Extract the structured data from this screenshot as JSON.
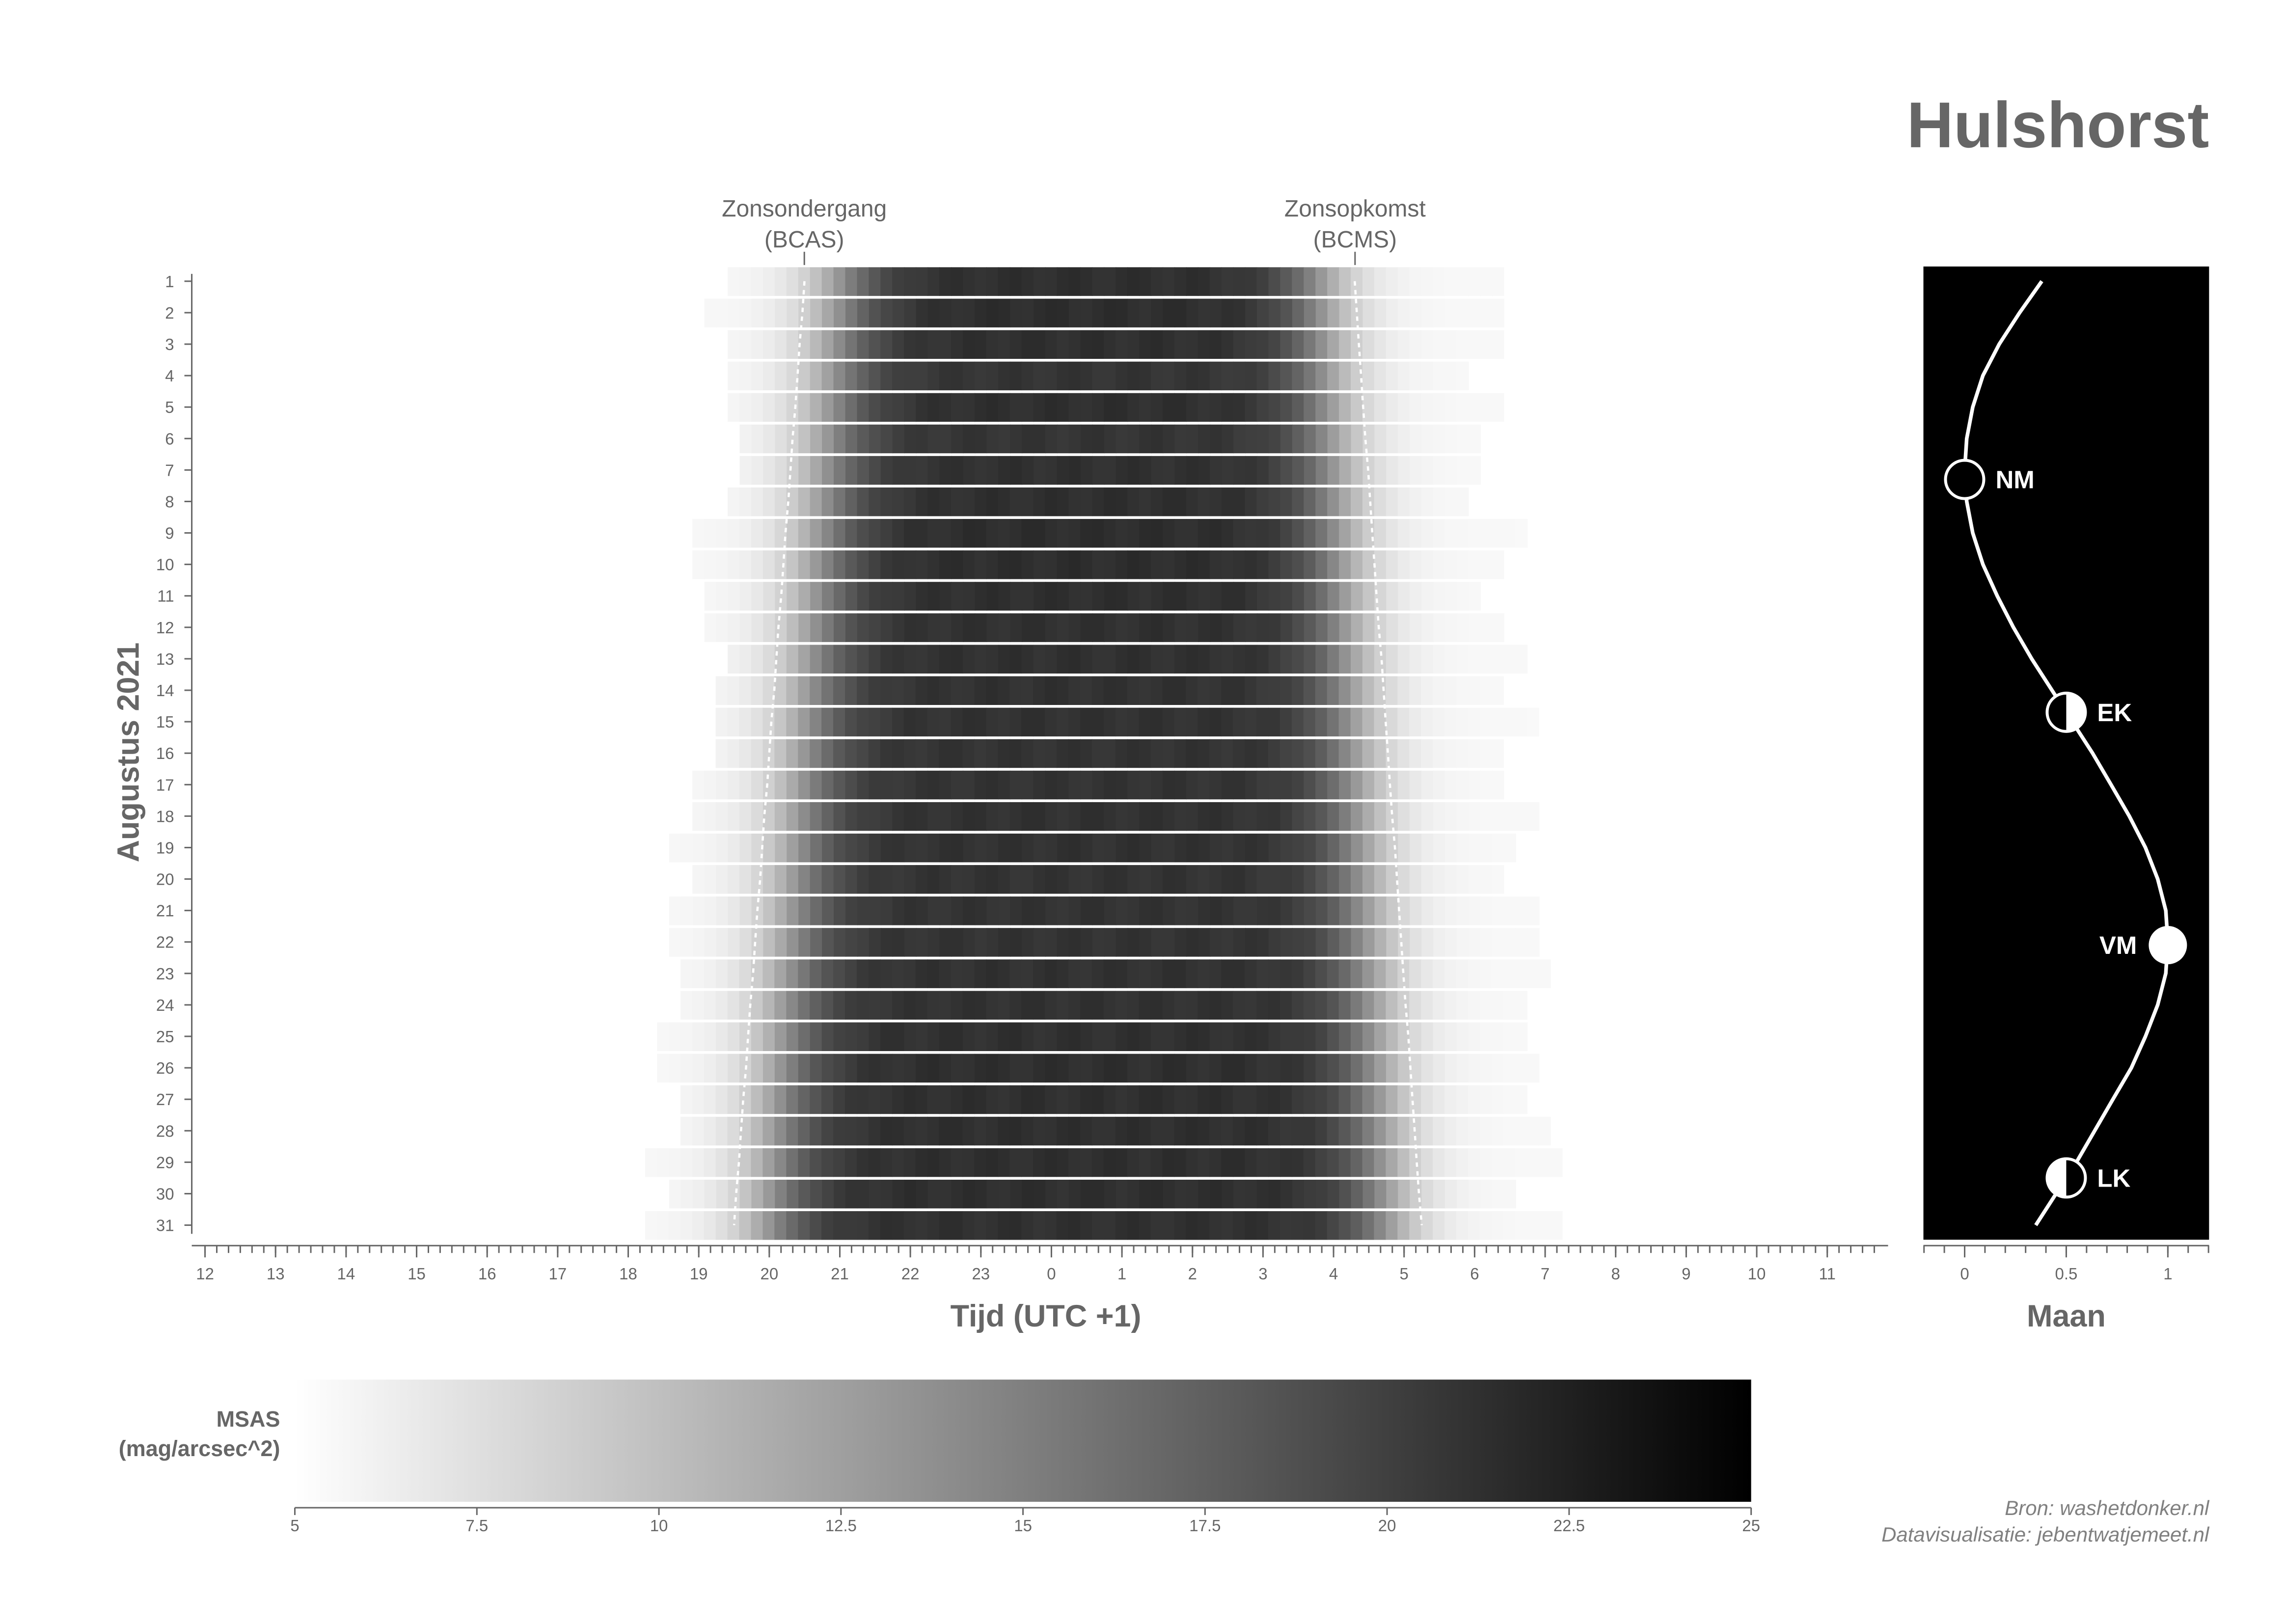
{
  "title": "Hulshorst",
  "annotations": {
    "sunset": [
      "Zonsondergang",
      "(BCAS)"
    ],
    "sunrise": [
      "Zonsopkomst",
      "(BCMS)"
    ]
  },
  "credits": {
    "source": "Bron: washetdonker.nl",
    "visualisation": "Datavisualisatie: jebentwatjemeet.nl"
  },
  "chart_data": [
    {
      "type": "heatmap",
      "xlabel": "Tijd (UTC +1)",
      "ylabel": "Augustus 2021",
      "x_ticks": [
        "12",
        "13",
        "14",
        "15",
        "16",
        "17",
        "18",
        "19",
        "20",
        "21",
        "22",
        "23",
        "0",
        "1",
        "2",
        "3",
        "4",
        "5",
        "6",
        "7",
        "8",
        "9",
        "10",
        "11"
      ],
      "y_ticks": [
        "1",
        "2",
        "3",
        "4",
        "5",
        "6",
        "7",
        "8",
        "9",
        "10",
        "11",
        "12",
        "13",
        "14",
        "15",
        "16",
        "17",
        "18",
        "19",
        "20",
        "21",
        "22",
        "23",
        "24",
        "25",
        "26",
        "27",
        "28",
        "29",
        "30",
        "31"
      ],
      "colorscale": {
        "label": [
          "MSAS",
          "(mag/arcsec^2)"
        ],
        "min": 5,
        "max": 25,
        "ticks": [
          "5",
          "7.5",
          "10",
          "12.5",
          "15",
          "17.5",
          "20",
          "22.5",
          "25"
        ],
        "low_color": "#ffffff",
        "high_color": "#000000"
      },
      "bin_minutes": 10,
      "rows": [
        {
          "day": 1,
          "start": 19.41,
          "end": 6.41,
          "sunset": 20.5,
          "sunrise": 4.3,
          "peak_msas": 21.3
        },
        {
          "day": 2,
          "start": 19.08,
          "end": 6.25,
          "sunset": 20.47,
          "sunrise": 4.33,
          "peak_msas": 21.4
        },
        {
          "day": 3,
          "start": 19.41,
          "end": 6.25,
          "sunset": 20.43,
          "sunrise": 4.36,
          "peak_msas": 21.3
        },
        {
          "day": 4,
          "start": 19.41,
          "end": 5.91,
          "sunset": 20.4,
          "sunrise": 4.39,
          "peak_msas": 20.9
        },
        {
          "day": 5,
          "start": 19.41,
          "end": 6.25,
          "sunset": 20.37,
          "sunrise": 4.42,
          "peak_msas": 21.3
        },
        {
          "day": 6,
          "start": 19.58,
          "end": 6.08,
          "sunset": 20.33,
          "sunrise": 4.45,
          "peak_msas": 20.9
        },
        {
          "day": 7,
          "start": 19.58,
          "end": 6.08,
          "sunset": 20.3,
          "sunrise": 4.49,
          "peak_msas": 21.2
        },
        {
          "day": 8,
          "start": 19.41,
          "end": 5.91,
          "sunset": 20.27,
          "sunrise": 4.52,
          "peak_msas": 21.3
        },
        {
          "day": 9,
          "start": 18.91,
          "end": 6.58,
          "sunset": 20.23,
          "sunrise": 4.55,
          "peak_msas": 21.4
        },
        {
          "day": 10,
          "start": 18.91,
          "end": 6.25,
          "sunset": 20.2,
          "sunrise": 4.58,
          "peak_msas": 21.4
        },
        {
          "day": 11,
          "start": 19.08,
          "end": 6.08,
          "sunset": 20.17,
          "sunrise": 4.61,
          "peak_msas": 21.3
        },
        {
          "day": 12,
          "start": 19.08,
          "end": 6.41,
          "sunset": 20.13,
          "sunrise": 4.64,
          "peak_msas": 21.2
        },
        {
          "day": 13,
          "start": 19.41,
          "end": 6.58,
          "sunset": 20.1,
          "sunrise": 4.68,
          "peak_msas": 21.2
        },
        {
          "day": 14,
          "start": 19.24,
          "end": 6.25,
          "sunset": 20.07,
          "sunrise": 4.71,
          "peak_msas": 21.1
        },
        {
          "day": 15,
          "start": 19.24,
          "end": 6.75,
          "sunset": 20.03,
          "sunrise": 4.74,
          "peak_msas": 21.1
        },
        {
          "day": 16,
          "start": 19.24,
          "end": 6.25,
          "sunset": 20.0,
          "sunrise": 4.77,
          "peak_msas": 21.0
        },
        {
          "day": 17,
          "start": 18.91,
          "end": 6.25,
          "sunset": 19.97,
          "sunrise": 4.8,
          "peak_msas": 21.0
        },
        {
          "day": 18,
          "start": 18.91,
          "end": 6.75,
          "sunset": 19.93,
          "sunrise": 4.83,
          "peak_msas": 21.1
        },
        {
          "day": 19,
          "start": 18.58,
          "end": 6.58,
          "sunset": 19.9,
          "sunrise": 4.87,
          "peak_msas": 21.1
        },
        {
          "day": 20,
          "start": 18.91,
          "end": 6.41,
          "sunset": 19.87,
          "sunrise": 4.9,
          "peak_msas": 21.0
        },
        {
          "day": 21,
          "start": 18.58,
          "end": 6.75,
          "sunset": 19.83,
          "sunrise": 4.93,
          "peak_msas": 21.0
        },
        {
          "day": 22,
          "start": 18.58,
          "end": 6.91,
          "sunset": 19.8,
          "sunrise": 4.96,
          "peak_msas": 21.0
        },
        {
          "day": 23,
          "start": 18.74,
          "end": 6.91,
          "sunset": 19.77,
          "sunrise": 4.99,
          "peak_msas": 21.1
        },
        {
          "day": 24,
          "start": 18.74,
          "end": 6.58,
          "sunset": 19.73,
          "sunrise": 5.02,
          "peak_msas": 21.1
        },
        {
          "day": 25,
          "start": 18.41,
          "end": 6.58,
          "sunset": 19.7,
          "sunrise": 5.06,
          "peak_msas": 21.2
        },
        {
          "day": 26,
          "start": 18.41,
          "end": 6.75,
          "sunset": 19.67,
          "sunrise": 5.09,
          "peak_msas": 21.3
        },
        {
          "day": 27,
          "start": 18.74,
          "end": 6.58,
          "sunset": 19.63,
          "sunrise": 5.12,
          "peak_msas": 21.3
        },
        {
          "day": 28,
          "start": 18.74,
          "end": 6.91,
          "sunset": 19.6,
          "sunrise": 5.15,
          "peak_msas": 21.3
        },
        {
          "day": 29,
          "start": 18.24,
          "end": 7.08,
          "sunset": 19.57,
          "sunrise": 5.18,
          "peak_msas": 21.3
        },
        {
          "day": 30,
          "start": 18.58,
          "end": 6.58,
          "sunset": 19.53,
          "sunrise": 5.21,
          "peak_msas": 21.3
        },
        {
          "day": 31,
          "start": 18.24,
          "end": 7.08,
          "sunset": 19.5,
          "sunrise": 5.25,
          "peak_msas": 21.2
        }
      ]
    },
    {
      "type": "line",
      "xlabel": "Maan",
      "x_ticks": [
        "0",
        "0.5",
        "1"
      ],
      "xlim": [
        0,
        1
      ],
      "background": "#000000",
      "line_color": "#ffffff",
      "illumination": [
        0.38,
        0.27,
        0.17,
        0.09,
        0.04,
        0.01,
        0.0,
        0.01,
        0.04,
        0.09,
        0.16,
        0.24,
        0.33,
        0.43,
        0.53,
        0.63,
        0.72,
        0.81,
        0.89,
        0.95,
        0.99,
        1.0,
        0.99,
        0.95,
        0.89,
        0.82,
        0.73,
        0.64,
        0.55,
        0.45,
        0.35
      ],
      "phases": [
        {
          "label": "NM",
          "day": 7.3,
          "value": 0.0,
          "kind": "new"
        },
        {
          "label": "EK",
          "day": 14.7,
          "value": 0.5,
          "kind": "first"
        },
        {
          "label": "VM",
          "day": 22.1,
          "value": 1.0,
          "kind": "full"
        },
        {
          "label": "LK",
          "day": 29.5,
          "value": 0.5,
          "kind": "last"
        }
      ]
    }
  ]
}
